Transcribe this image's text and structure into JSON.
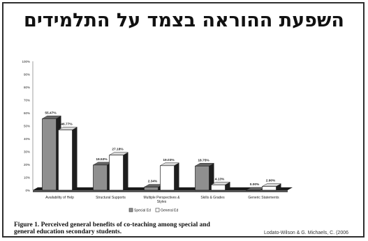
{
  "slide": {
    "title": "השפעת ההוראה בצמד על התלמידים",
    "caption_line1": "Figure 1. Perceived general benefits of co-teaching among special and",
    "caption_line2": "general education secondary students.",
    "credit": "Lodato-Wilson & G. Michaels, C. (2006"
  },
  "colors": {
    "special_ed": "#8f8f8f",
    "general_ed": "#ffffff",
    "floor": "#1a1a1a",
    "bar_edge": "#222222"
  },
  "chart_data": {
    "type": "bar",
    "categories": [
      "Availability of Help",
      "Structural Supports",
      "Multiple Perspectives & Styles",
      "Skills & Grades",
      "Generic Statements"
    ],
    "category_lines": [
      [
        "Availability of Help"
      ],
      [
        "Structural Supports"
      ],
      [
        "Multiple Perspectives &",
        "Styles"
      ],
      [
        "Skills & Grades"
      ],
      [
        "Generic Statements"
      ]
    ],
    "series": [
      {
        "name": "Special Ed",
        "values": [
          55.47,
          19.53,
          2.34,
          18.75,
          0.0
        ],
        "labels": [
          "55.47%",
          "19.53%",
          "2.34%",
          "18.75%",
          "0.00%"
        ]
      },
      {
        "name": "General Ed",
        "values": [
          46.77,
          27.18,
          19.03,
          4.13,
          2.9
        ],
        "labels": [
          "46.77%",
          "27.18%",
          "19.03%",
          "4.13%",
          "2.90%"
        ]
      }
    ],
    "yticks": [
      "0%",
      "10%",
      "20%",
      "30%",
      "40%",
      "50%",
      "60%",
      "70%",
      "80%",
      "90%",
      "100%"
    ],
    "ylim": [
      0,
      100
    ],
    "legend_position": "bottom-center",
    "grid": false
  }
}
